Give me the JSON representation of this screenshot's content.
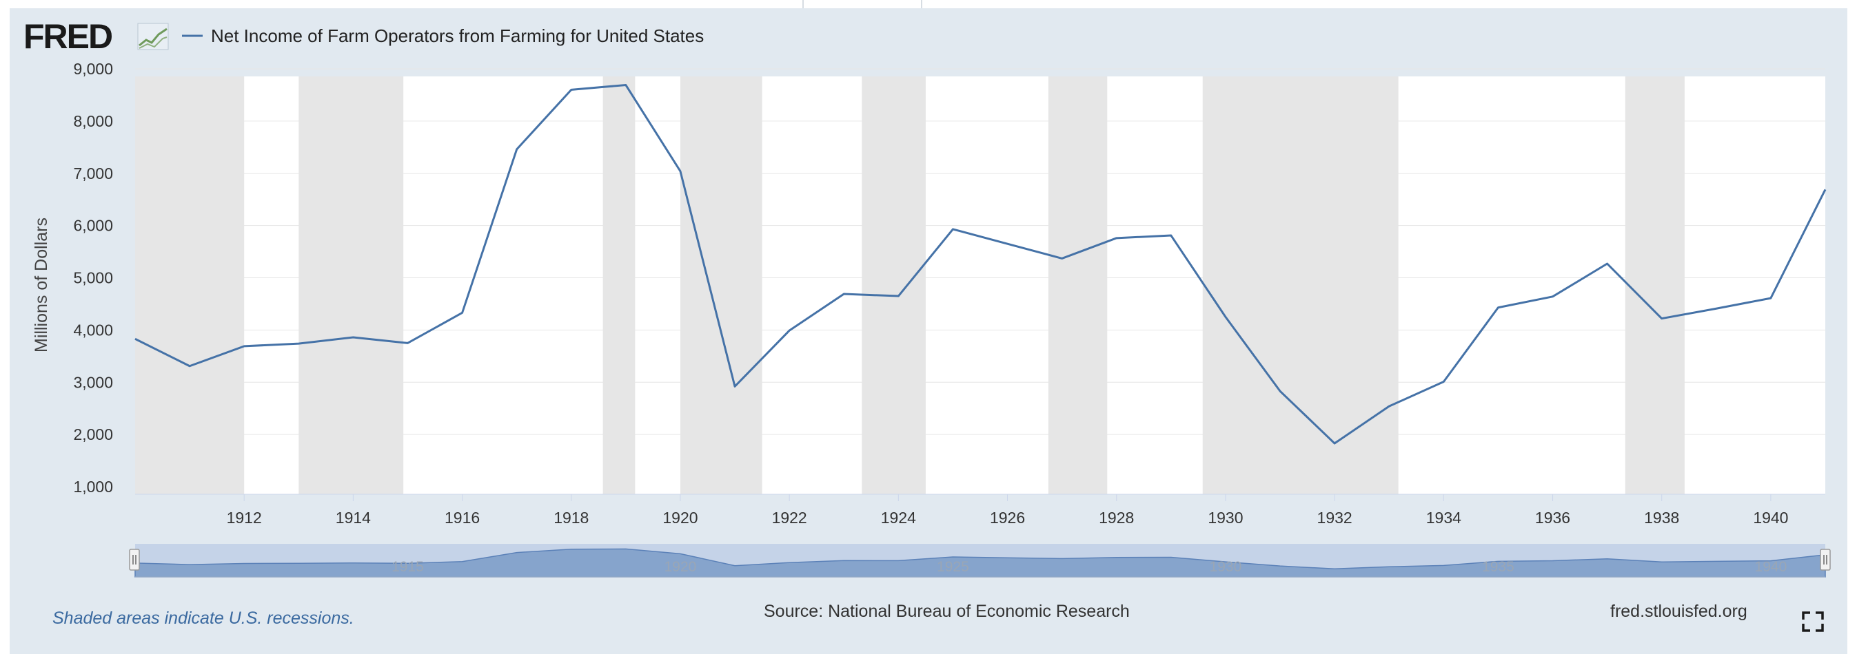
{
  "header": {
    "logo_text": "FRED",
    "legend_label": "Net Income of Farm Operators from Farming for United States"
  },
  "chart_data": {
    "type": "line",
    "title": "Net Income of Farm Operators from Farming for United States",
    "ylabel": "Millions of Dollars",
    "xlabel": "",
    "xlim": [
      1910,
      1941
    ],
    "ylim": [
      1000,
      9000
    ],
    "y_ticks": [
      1000,
      2000,
      3000,
      4000,
      5000,
      6000,
      7000,
      8000,
      9000
    ],
    "y_tick_labels": [
      "1,000",
      "2,000",
      "3,000",
      "4,000",
      "5,000",
      "6,000",
      "7,000",
      "8,000",
      "9,000"
    ],
    "x_ticks": [
      1912,
      1914,
      1916,
      1918,
      1920,
      1922,
      1924,
      1926,
      1928,
      1930,
      1932,
      1934,
      1936,
      1938,
      1940
    ],
    "x_tick_labels": [
      "1912",
      "1914",
      "1916",
      "1918",
      "1920",
      "1922",
      "1924",
      "1926",
      "1928",
      "1930",
      "1932",
      "1934",
      "1936",
      "1938",
      "1940"
    ],
    "series": [
      {
        "name": "Net Income of Farm Operators from Farming for United States",
        "color": "#4572a7",
        "x": [
          1910,
          1911,
          1912,
          1913,
          1914,
          1915,
          1916,
          1917,
          1918,
          1919,
          1920,
          1921,
          1922,
          1923,
          1924,
          1925,
          1926,
          1927,
          1928,
          1929,
          1930,
          1931,
          1932,
          1933,
          1934,
          1935,
          1936,
          1937,
          1938,
          1939,
          1940,
          1941
        ],
        "values": [
          3830,
          3310,
          3690,
          3740,
          3860,
          3750,
          4330,
          7460,
          8600,
          8690,
          7040,
          2920,
          3990,
          4690,
          4650,
          5930,
          5650,
          5370,
          5760,
          5810,
          4250,
          2830,
          1830,
          2540,
          3010,
          4430,
          4640,
          5270,
          4220,
          4410,
          4610,
          6690
        ]
      }
    ],
    "recessions": [
      [
        1910.0,
        1912.0
      ],
      [
        1913.0,
        1914.92
      ],
      [
        1918.58,
        1919.17
      ],
      [
        1920.0,
        1921.5
      ],
      [
        1923.33,
        1924.5
      ],
      [
        1926.75,
        1927.83
      ],
      [
        1929.58,
        1933.17
      ],
      [
        1937.33,
        1938.42
      ]
    ],
    "navigator_labels": [
      "1915",
      "1920",
      "1925",
      "1930",
      "1935",
      "1940"
    ],
    "grid": true,
    "legend": "top-left"
  },
  "footer": {
    "recession_note": "Shaded areas indicate U.S. recessions.",
    "source": "Source: National Bureau of Economic Research",
    "site": "fred.stlouisfed.org"
  },
  "colors": {
    "background": "#e1e9f0",
    "plot_background": "#ffffff",
    "recession_shade": "#e6e6e6",
    "series": "#4572a7",
    "navigator_fill": "#7e9ec9",
    "note": "#3b6aa0"
  },
  "icons": {
    "logo_chart_icon": "line-graph-icon",
    "fullscreen_icon": "fullscreen-icon"
  }
}
